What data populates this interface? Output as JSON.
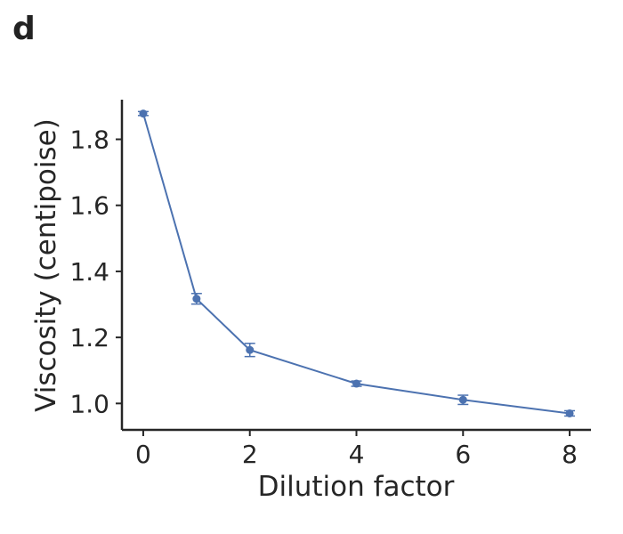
{
  "panel_label": "d",
  "colors": {
    "series": "#4c72b0",
    "axis": "#262626",
    "text": "#262626"
  },
  "chart_data": {
    "type": "line",
    "title": "",
    "xlabel": "Dilution factor",
    "ylabel": "Viscosity (centipoise)",
    "xlim": [
      -0.4,
      8.4
    ],
    "ylim": [
      0.92,
      1.92
    ],
    "xticks": [
      0,
      2,
      4,
      6,
      8
    ],
    "xtick_labels": [
      "0",
      "2",
      "4",
      "6",
      "8"
    ],
    "yticks": [
      1.0,
      1.2,
      1.4,
      1.6,
      1.8
    ],
    "ytick_labels": [
      "1.0",
      "1.2",
      "1.4",
      "1.6",
      "1.8"
    ],
    "grid": false,
    "legend": "none",
    "series": [
      {
        "x": [
          0,
          1,
          2,
          4,
          6,
          8
        ],
        "y": [
          1.878,
          1.317,
          1.162,
          1.06,
          1.011,
          0.97
        ],
        "error": [
          0.006,
          0.016,
          0.02,
          0.008,
          0.014,
          0.008
        ],
        "marker": "circle"
      }
    ]
  }
}
